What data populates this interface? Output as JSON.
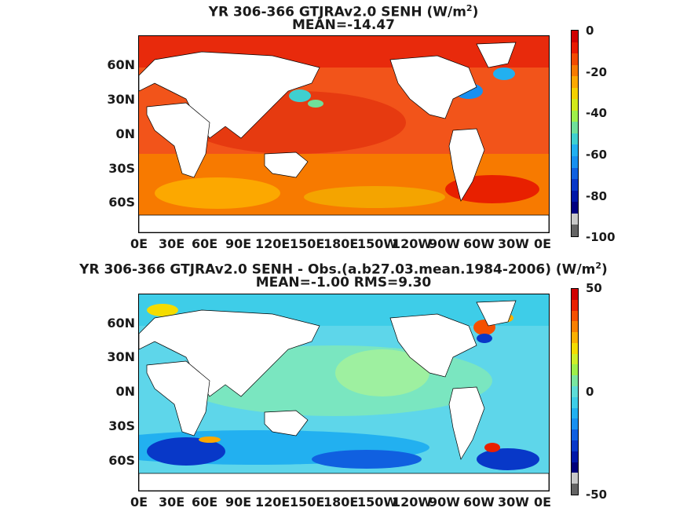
{
  "panels": [
    {
      "title_line1": "YR 306-366 GTJRAv2.0  SENH (W/m",
      "title_sup": "2",
      "title_close": ")",
      "title_line2": "MEAN=-14.47",
      "colorbar": {
        "range": [
          -100,
          0
        ],
        "tick_labels": [
          "0",
          "-20",
          "-40",
          "-60",
          "-80",
          "-100"
        ],
        "colors": [
          "#d00000",
          "#e81a00",
          "#f24a00",
          "#f77a00",
          "#fca800",
          "#f4d000",
          "#d2e81a",
          "#9ef04a",
          "#6fe09a",
          "#3fd0d0",
          "#22b0f0",
          "#1890f0",
          "#1060e0",
          "#0838c8",
          "#0018a8",
          "#000080",
          "#c8c8c8",
          "#646464"
        ]
      },
      "dominant_colors": {
        "ocean": "#f25a12",
        "land": "#ffffff"
      }
    },
    {
      "title_line1": "YR 306-366 GTJRAv2.0 SENH - Obs.(a.b27.03.mean.1984-2006) (W/m",
      "title_sup": "2",
      "title_close": ")",
      "title_line2": "MEAN=-1.00 RMS=9.30",
      "colorbar": {
        "range": [
          -50,
          50
        ],
        "tick_labels": [
          "50",
          "0",
          "-50"
        ],
        "colors": [
          "#d00000",
          "#e82000",
          "#f55000",
          "#fa8000",
          "#fcb000",
          "#f4dc00",
          "#cfef28",
          "#9ef04a",
          "#7ae6a0",
          "#5edcd8",
          "#3ecde8",
          "#22b0f0",
          "#1890f0",
          "#1060e0",
          "#0838c8",
          "#0018a8",
          "#00007a",
          "#c8c8c8",
          "#646464"
        ]
      },
      "dominant_colors": {
        "ocean": "#5ed6ea",
        "land": "#ffffff"
      }
    }
  ],
  "axes": {
    "lat_labels": [
      "60N",
      "30N",
      "0N",
      "30S",
      "60S"
    ],
    "lon_labels": [
      "0E",
      "30E",
      "60E",
      "90E",
      "120E",
      "150E",
      "180E",
      "150W",
      "120W",
      "90W",
      "60W",
      "30W",
      "0E"
    ]
  }
}
